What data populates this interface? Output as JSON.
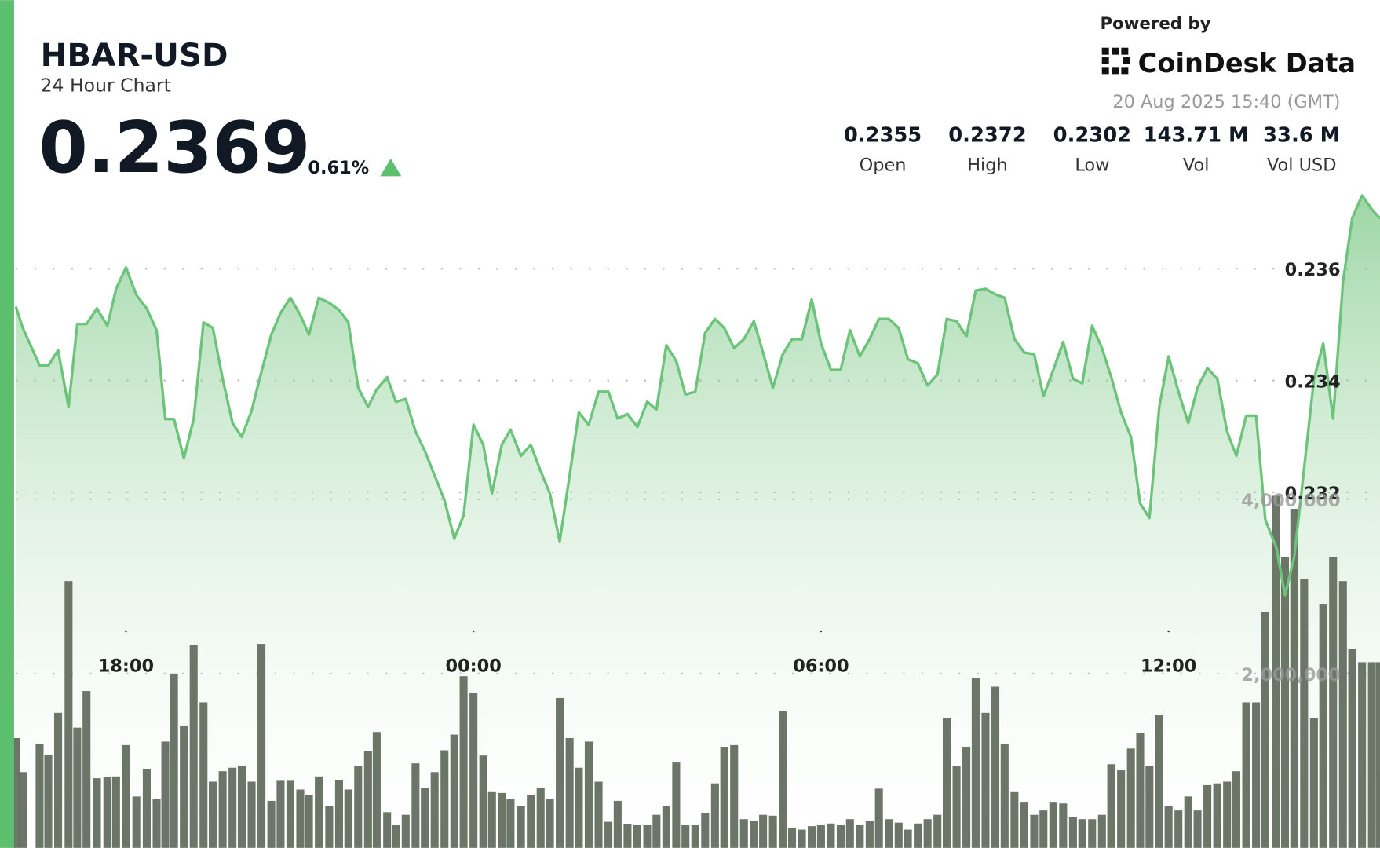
{
  "header": {
    "title": "HBAR-USD",
    "subtitle": "24 Hour Chart",
    "price": "0.2369",
    "change": "0.61%",
    "powered_by": "Powered by",
    "brand": "CoinDesk Data",
    "timestamp": "20 Aug 2025 15:40 (GMT)",
    "stats": [
      {
        "value": "0.2355",
        "label": "Open"
      },
      {
        "value": "0.2372",
        "label": "High"
      },
      {
        "value": "0.2302",
        "label": "Low"
      },
      {
        "value": "143.71 M",
        "label": "Vol"
      },
      {
        "value": "33.6 M",
        "label": "Vol USD"
      }
    ]
  },
  "chart_data": {
    "type": "line",
    "x": [
      16.1,
      16.22,
      16.51,
      16.66,
      16.83,
      17.01,
      17.16,
      17.32,
      17.5,
      17.68,
      17.83,
      18.0,
      18.18,
      18.36,
      18.53,
      18.68,
      18.83,
      19.0,
      19.17,
      19.34,
      19.5,
      19.67,
      19.84,
      20.0,
      20.17,
      20.34,
      20.51,
      20.67,
      20.84,
      21.01,
      21.16,
      21.33,
      21.51,
      21.68,
      21.84,
      22.01,
      22.18,
      22.33,
      22.51,
      22.66,
      22.83,
      23.0,
      23.16,
      23.33,
      23.5,
      23.67,
      23.83,
      24.0,
      24.17,
      24.32,
      24.49,
      24.64,
      24.82,
      24.99,
      25.16,
      25.32,
      25.49,
      25.66,
      25.82,
      25.99,
      26.16,
      26.33,
      26.49,
      26.66,
      26.83,
      27.0,
      27.16,
      27.33,
      27.5,
      27.66,
      27.83,
      28.0,
      28.17,
      28.33,
      28.5,
      28.67,
      28.84,
      29.0,
      29.17,
      29.34,
      29.5,
      29.67,
      29.84,
      30.0,
      30.17,
      30.34,
      30.5,
      30.67,
      30.84,
      31.0,
      31.17,
      31.34,
      31.5,
      31.67,
      31.84,
      32.01,
      32.17,
      32.34,
      32.51,
      32.67,
      32.84,
      33.01,
      33.17,
      33.34,
      33.51,
      33.68,
      33.84,
      34.01,
      34.18,
      34.35,
      34.51,
      34.68,
      34.85,
      35.01,
      35.18,
      35.35,
      35.51,
      35.67,
      35.84,
      36.0,
      36.17,
      36.34,
      36.5,
      36.67,
      36.84,
      37.01,
      37.17,
      37.34,
      37.51,
      37.67,
      37.86,
      38.01,
      38.17,
      38.34,
      38.51,
      38.67,
      38.84,
      39.01,
      39.17,
      39.34,
      39.51,
      39.65
    ],
    "series": [
      {
        "type": "line",
        "color": "#6cc47a",
        "values": [
          0.23532,
          0.23494,
          0.23427,
          0.23427,
          0.23454,
          0.23353,
          0.23501,
          0.23501,
          0.23529,
          0.23498,
          0.23564,
          0.23602,
          0.23553,
          0.23529,
          0.2349,
          0.23331,
          0.23331,
          0.23261,
          0.23331,
          0.23504,
          0.23494,
          0.23403,
          0.23324,
          0.23299,
          0.23346,
          0.23416,
          0.23482,
          0.23521,
          0.23548,
          0.23517,
          0.23482,
          0.23548,
          0.23539,
          0.23526,
          0.23504,
          0.23387,
          0.23353,
          0.23384,
          0.23406,
          0.23362,
          0.23367,
          0.23309,
          0.23274,
          0.2323,
          0.23186,
          0.23117,
          0.23159,
          0.23321,
          0.23285,
          0.23198,
          0.23285,
          0.23312,
          0.23265,
          0.23285,
          0.23238,
          0.23198,
          0.23112,
          0.2323,
          0.23343,
          0.23321,
          0.2338,
          0.2338,
          0.23332,
          0.2334,
          0.23317,
          0.23362,
          0.23348,
          0.23463,
          0.23435,
          0.23375,
          0.2338,
          0.23485,
          0.2351,
          0.23494,
          0.23458,
          0.23474,
          0.23506,
          0.2345,
          0.23387,
          0.23447,
          0.23474,
          0.23474,
          0.23545,
          0.23466,
          0.23419,
          0.23419,
          0.2349,
          0.23443,
          0.23474,
          0.2351,
          0.2351,
          0.23494,
          0.23438,
          0.23431,
          0.23391,
          0.23411,
          0.2351,
          0.23506,
          0.23479,
          0.23561,
          0.23564,
          0.23554,
          0.23548,
          0.23474,
          0.2345,
          0.23447,
          0.23372,
          0.23419,
          0.23469,
          0.23403,
          0.23395,
          0.23498,
          0.23458,
          0.23406,
          0.23343,
          0.23299,
          0.2318,
          0.23154,
          0.23353,
          0.23443,
          0.2338,
          0.23324,
          0.23387,
          0.23422,
          0.23403,
          0.23309,
          0.23265,
          0.23337,
          0.23337,
          0.23151,
          0.23101,
          0.23016,
          0.23085,
          0.23243,
          0.23403,
          0.23466,
          0.23332,
          0.23576,
          0.2369,
          0.23731,
          0.23706,
          0.2369
        ]
      },
      {
        "type": "bar",
        "axis": "y2",
        "color": "#5f6a5b",
        "values": [
          1260000,
          870000,
          1190000,
          1070000,
          1550000,
          3060000,
          1380000,
          1800000,
          800000,
          810000,
          820000,
          1180000,
          590000,
          900000,
          560000,
          1220000,
          2000000,
          1400000,
          2330000,
          1670000,
          760000,
          880000,
          920000,
          940000,
          760000,
          2340000,
          540000,
          770000,
          770000,
          670000,
          610000,
          820000,
          480000,
          780000,
          670000,
          940000,
          1110000,
          1330000,
          410000,
          260000,
          380000,
          970000,
          690000,
          870000,
          1120000,
          1300000,
          1970000,
          1780000,
          1060000,
          640000,
          630000,
          560000,
          480000,
          610000,
          690000,
          560000,
          1720000,
          1260000,
          920000,
          1220000,
          760000,
          300000,
          540000,
          270000,
          260000,
          260000,
          380000,
          480000,
          980000,
          260000,
          260000,
          400000,
          740000,
          1160000,
          1180000,
          330000,
          310000,
          380000,
          370000,
          1570000,
          230000,
          210000,
          250000,
          260000,
          280000,
          260000,
          330000,
          260000,
          310000,
          680000,
          330000,
          290000,
          210000,
          280000,
          330000,
          380000,
          1490000,
          940000,
          1160000,
          1950000,
          1550000,
          1850000,
          1190000,
          640000,
          520000,
          380000,
          430000,
          520000,
          510000,
          350000,
          330000,
          330000,
          380000,
          960000,
          890000,
          1140000,
          1320000,
          940000,
          1530000,
          480000,
          430000,
          590000,
          430000,
          720000,
          740000,
          760000,
          880000,
          1670000,
          1670000,
          2710000,
          4040000,
          3340000,
          3890000,
          3080000,
          1490000,
          2800000,
          3340000,
          3060000,
          2280000,
          2130000,
          2130000,
          2130000
        ]
      }
    ],
    "xlim": [
      16.1,
      39.65
    ],
    "xticks": [
      {
        "value": 18,
        "label": "18:00"
      },
      {
        "value": 24,
        "label": "00:00"
      },
      {
        "value": 30,
        "label": "06:00"
      },
      {
        "value": 36,
        "label": "12:00"
      }
    ],
    "ylim": [
      0.22564,
      0.23734
    ],
    "yticks": [
      0.232,
      0.234,
      0.236
    ],
    "y2lim": [
      0,
      7505000
    ],
    "y2ticks": [
      {
        "value": 2000000,
        "label": "2,000,000"
      },
      {
        "value": 4000000,
        "label": "4,000,000"
      }
    ],
    "grid": true
  }
}
